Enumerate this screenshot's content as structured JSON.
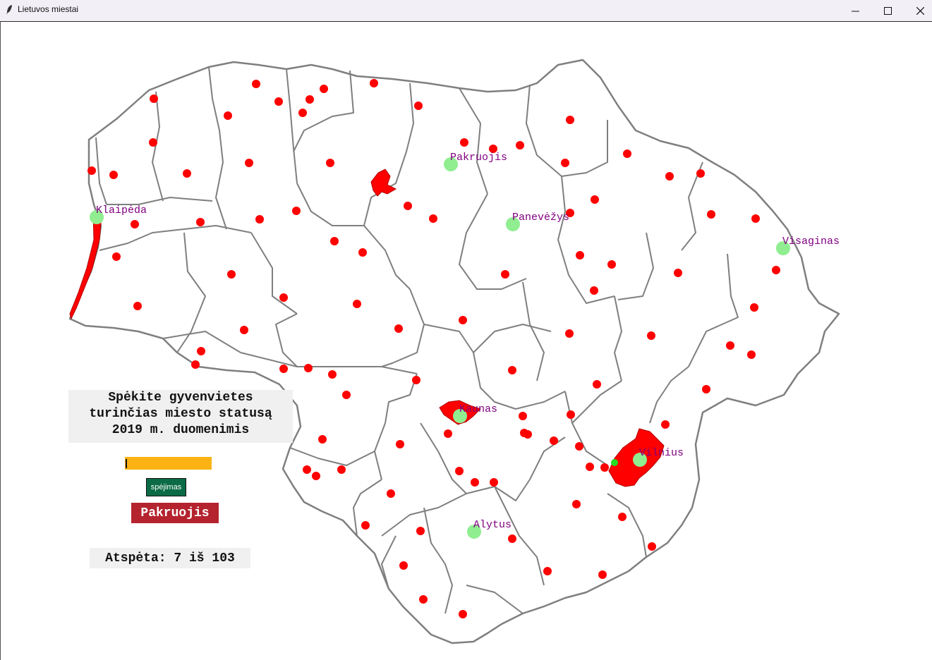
{
  "window": {
    "title": "Lietuvos miestai",
    "controls": {
      "minimize": "minimize-icon",
      "maximize": "maximize-icon",
      "close": "close-icon"
    }
  },
  "colors": {
    "city_dot": "#ff0000",
    "guessed_city": "#90ee90",
    "city_label": "#800080",
    "border": "#7f7f7f",
    "entry_bg": "#fbb314",
    "button_bg": "#0b6b46",
    "result_bg": "#b4232e"
  },
  "panel": {
    "prompt": "Spėkite gyvenvietes\nturinčias miesto statusą\n2019 m. duomenimis",
    "entry_value": "",
    "button_label": "spėjimas",
    "last_guess": "Pakruojis",
    "score": "Atspėta: 7 iš 103"
  },
  "map": {
    "guessed_cities": [
      {
        "name": "Klaipėda"
      },
      {
        "name": "Pakruojis"
      },
      {
        "name": "Panevėžys"
      },
      {
        "name": "Visaginas"
      },
      {
        "name": "Kaunas"
      },
      {
        "name": "Vilnius"
      },
      {
        "name": "Alytus"
      }
    ]
  }
}
